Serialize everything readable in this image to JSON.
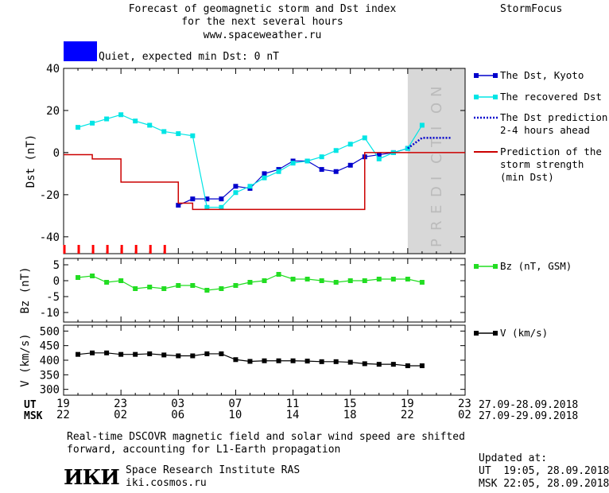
{
  "header": {
    "title_lines": [
      "Forecast of geomagnetic storm and Dst index",
      "for the next several hours",
      "www.spaceweather.ru"
    ],
    "brand": "StormFocus",
    "status_text": "Quiet, expected min Dst: 0 nT",
    "status_color": "#0000ff"
  },
  "footer": {
    "note_lines": [
      "Real-time DSCOVR magnetic field and solar wind speed are shifted",
      "forward, accounting for L1-Earth propagation"
    ],
    "org_logo": "ИКИ",
    "org_name": "Space Research Institute RAS",
    "org_url": "iki.cosmos.ru",
    "updated_label": "Updated at:",
    "updated_ut": "UT  19:05, 28.09.2018",
    "updated_msk": "MSK 22:05, 28.09.2018"
  },
  "time_axis": {
    "ut_label": "UT",
    "msk_label": "MSK",
    "ut_ticks": [
      "19",
      "23",
      "03",
      "07",
      "11",
      "15",
      "19",
      "23"
    ],
    "msk_ticks": [
      "22",
      "02",
      "06",
      "10",
      "14",
      "18",
      "22",
      "02"
    ],
    "ut_range": "27.09-28.09.2018",
    "msk_range": "27.09-29.09.2018"
  },
  "chart_data": [
    {
      "type": "line",
      "ylabel": "Dst (nT)",
      "ylim": [
        -48,
        40
      ],
      "yticks": [
        40,
        20,
        0,
        -20,
        -40
      ],
      "xlim": [
        0,
        28
      ],
      "prediction_region": [
        24,
        28
      ],
      "prediction_label": "PREDICTION",
      "series": [
        {
          "name": "The Dst, Kyoto",
          "color": "#0000cc",
          "marker": "square",
          "x": [
            8,
            9,
            10,
            11,
            12,
            13,
            14,
            15,
            16,
            17,
            18,
            19,
            20,
            21,
            22,
            23,
            24
          ],
          "values": [
            -25,
            -22,
            -22,
            -22,
            -16,
            -17,
            -10,
            -8,
            -4,
            -4,
            -8,
            -9,
            -6,
            -2,
            -1,
            0,
            2
          ]
        },
        {
          "name": "The recovered Dst",
          "color": "#00e5e5",
          "marker": "square",
          "x": [
            1,
            2,
            3,
            4,
            5,
            6,
            7,
            8,
            9,
            10,
            11,
            12,
            13,
            14,
            15,
            16,
            17,
            18,
            19,
            20,
            21,
            22,
            23,
            24,
            25
          ],
          "values": [
            12,
            14,
            16,
            18,
            15,
            13,
            10,
            9,
            8,
            -26,
            -26,
            -19,
            -16,
            -12,
            -9,
            -5,
            -4,
            -2,
            1,
            4,
            7,
            -3,
            0,
            2,
            13
          ]
        },
        {
          "name": "The Dst prediction 2-4 hours ahead",
          "color": "#0000cc",
          "style": "dotted",
          "x": [
            24,
            25,
            26,
            27
          ],
          "values": [
            2,
            7,
            7,
            7
          ]
        },
        {
          "name": "Prediction of the storm strength (min Dst)",
          "color": "#cc0000",
          "style": "step",
          "x": [
            0,
            1,
            2,
            3,
            4,
            5,
            6,
            7,
            8,
            9,
            10,
            11,
            12,
            13,
            14,
            15,
            16,
            17,
            18,
            19,
            20,
            21,
            22,
            23,
            24,
            25,
            26,
            27,
            28
          ],
          "values": [
            -1,
            -1,
            -3,
            -3,
            -14,
            -14,
            -14,
            -14,
            -24,
            -27,
            -27,
            -27,
            -27,
            -27,
            -27,
            -27,
            -27,
            -27,
            -27,
            -27,
            -27,
            0,
            0,
            0,
            0,
            0,
            0,
            0,
            0
          ]
        }
      ],
      "storm_ticks_x": [
        0,
        1,
        2,
        3,
        4,
        5,
        6,
        7
      ],
      "storm_ticks_color": "#ff0000",
      "legend": [
        {
          "lines": [
            "The Dst, Kyoto"
          ],
          "color": "#0000cc",
          "kind": "marker"
        },
        {
          "lines": [
            "The recovered Dst"
          ],
          "color": "#00e5e5",
          "kind": "marker"
        },
        {
          "lines": [
            "The Dst prediction",
            "2-4 hours ahead"
          ],
          "color": "#0000cc",
          "kind": "dotted"
        },
        {
          "lines": [
            "Prediction of the",
            "storm strength",
            "(min Dst)"
          ],
          "color": "#cc0000",
          "kind": "line"
        }
      ],
      "legend_position": "right"
    },
    {
      "type": "line",
      "ylabel": "Bz (nT)",
      "ylim": [
        -13,
        7
      ],
      "yticks": [
        5,
        0,
        -5,
        -10
      ],
      "xlim": [
        0,
        28
      ],
      "series": [
        {
          "name": "Bz (nT, GSM)",
          "color": "#22dd22",
          "marker": "square",
          "x": [
            1,
            2,
            3,
            4,
            5,
            6,
            7,
            8,
            9,
            10,
            11,
            12,
            13,
            14,
            15,
            16,
            17,
            18,
            19,
            20,
            21,
            22,
            23,
            24,
            25
          ],
          "values": [
            1,
            1.5,
            -0.5,
            0,
            -2.5,
            -2,
            -2.5,
            -1.5,
            -1.5,
            -3,
            -2.5,
            -1.5,
            -0.5,
            0,
            2,
            0.5,
            0.5,
            0,
            -0.5,
            0,
            0,
            0.5,
            0.5,
            0.5,
            -0.5
          ]
        }
      ],
      "legend": [
        {
          "lines": [
            "Bz (nT, GSM)"
          ],
          "color": "#22dd22",
          "kind": "marker"
        }
      ],
      "legend_position": "right"
    },
    {
      "type": "line",
      "ylabel": "V (km/s)",
      "ylim": [
        280,
        520
      ],
      "yticks": [
        500,
        450,
        400,
        350,
        300
      ],
      "xlim": [
        0,
        28
      ],
      "series": [
        {
          "name": "V (km/s)",
          "color": "#000000",
          "marker": "square",
          "x": [
            1,
            2,
            3,
            4,
            5,
            6,
            7,
            8,
            9,
            10,
            11,
            12,
            13,
            14,
            15,
            16,
            17,
            18,
            19,
            20,
            21,
            22,
            23,
            24,
            25
          ],
          "values": [
            420,
            425,
            425,
            420,
            420,
            422,
            418,
            415,
            415,
            422,
            422,
            402,
            396,
            398,
            398,
            398,
            397,
            395,
            395,
            393,
            388,
            386,
            386,
            381,
            381
          ]
        }
      ],
      "legend": [
        {
          "lines": [
            "V (km/s)"
          ],
          "color": "#000000",
          "kind": "marker"
        }
      ],
      "legend_position": "right"
    }
  ]
}
